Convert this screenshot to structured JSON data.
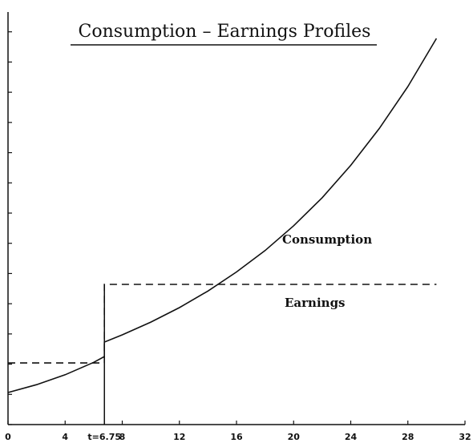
{
  "chart_data": {
    "type": "line",
    "title": "Consumption – Earnings Profiles",
    "series": [
      {
        "name": "Consumption",
        "color": "#111111",
        "dash": false,
        "x": [
          0,
          2,
          4,
          6,
          6.75,
          6.75,
          8,
          10,
          12,
          14,
          16,
          18,
          20,
          22,
          24,
          26,
          28,
          30
        ],
        "values": [
          1.06,
          1.32,
          1.65,
          2.06,
          2.25,
          2.73,
          2.97,
          3.39,
          3.87,
          4.42,
          5.05,
          5.76,
          6.58,
          7.51,
          8.58,
          9.8,
          11.19,
          12.78
        ]
      },
      {
        "name": "Earnings",
        "color": "#111111",
        "dash": true,
        "x": [
          0,
          6.75,
          6.75,
          30
        ],
        "values": [
          2.04,
          2.04,
          4.64,
          4.64
        ]
      }
    ],
    "xlim": [
      0,
      32
    ],
    "xticks": [
      0,
      4,
      {
        "value": 6.75,
        "label": "t=6.75"
      },
      8,
      12,
      16,
      20,
      24,
      28,
      32
    ],
    "ylim": [
      0,
      14
    ],
    "yticks": [
      0,
      1,
      2,
      3,
      4,
      5,
      6,
      7,
      8,
      9,
      10,
      11,
      12,
      13
    ]
  }
}
